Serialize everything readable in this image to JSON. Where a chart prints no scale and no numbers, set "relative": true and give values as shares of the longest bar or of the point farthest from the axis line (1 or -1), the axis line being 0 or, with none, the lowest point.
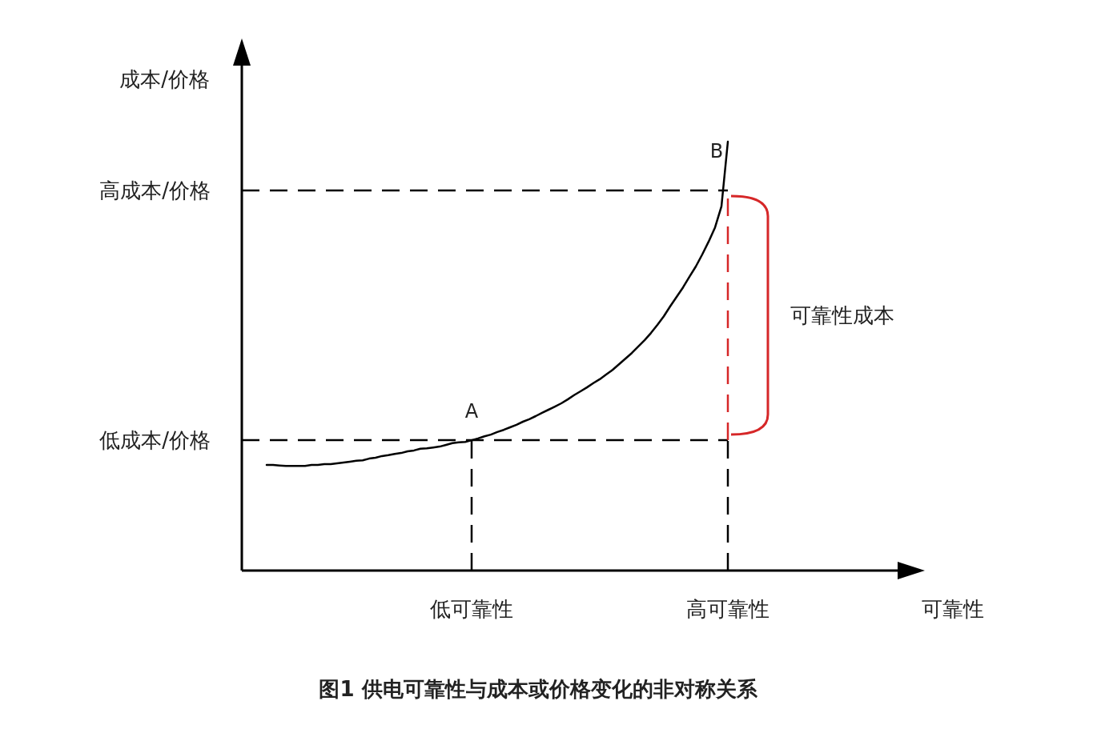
{
  "chart_data": {
    "type": "line",
    "relative": true,
    "title": "图1   供电可靠性与成本或价格变化的非对称关系",
    "ylabel": "成本/价格",
    "categories": [
      null,
      null,
      null,
      null,
      null,
      null,
      null,
      null,
      null,
      null,
      null,
      null,
      null,
      null,
      null,
      null,
      null,
      null,
      null,
      null,
      null,
      null,
      null,
      null,
      null,
      null,
      null,
      null,
      null,
      null,
      null,
      null,
      "低可靠性",
      null,
      null,
      null,
      null,
      null,
      null,
      null,
      null,
      null,
      null,
      null,
      null,
      null,
      null,
      null,
      null,
      null,
      null,
      null,
      null,
      null,
      null,
      null,
      null,
      null,
      null,
      null,
      null,
      null,
      null,
      null,
      null,
      null,
      null,
      null,
      null,
      null,
      null,
      null,
      "高可靠性"
    ],
    "series": [
      {
        "color": "#000000",
        "values": [
          0.246,
          0.246,
          0.245,
          0.244,
          0.244,
          0.244,
          0.244,
          0.246,
          0.246,
          0.248,
          0.248,
          0.25,
          0.252,
          0.254,
          0.256,
          0.257,
          0.261,
          0.263,
          0.267,
          0.269,
          0.272,
          0.274,
          0.278,
          0.28,
          0.284,
          0.285,
          0.287,
          0.289,
          0.293,
          0.297,
          0.299,
          0.3,
          0.304,
          0.308,
          0.313,
          0.317,
          0.323,
          0.328,
          0.334,
          0.34,
          0.347,
          0.353,
          0.36,
          0.368,
          0.375,
          0.382,
          0.39,
          0.399,
          0.409,
          0.418,
          0.427,
          0.437,
          0.446,
          0.457,
          0.468,
          0.481,
          0.494,
          0.507,
          0.522,
          0.537,
          0.554,
          0.573,
          0.593,
          0.616,
          0.638,
          0.66,
          0.685,
          0.709,
          0.737,
          0.767,
          0.8,
          0.849,
          1
        ]
      }
    ],
    "line_style": "solid",
    "marker": "none",
    "ref_lines": [
      {
        "axis": "y",
        "value": 0.304,
        "label": "低成本/价格",
        "line_style": "dashed",
        "color": "#000000"
      },
      {
        "axis": "y",
        "value": 0.886,
        "label": "高成本/价格",
        "line_style": "dashed",
        "color": "#000000"
      },
      {
        "axis": "x",
        "value": "低可靠性",
        "line_style": "dashed",
        "color": "#000000"
      },
      {
        "axis": "x",
        "value": "高可靠性",
        "line_style": "dashed",
        "color": "#000000"
      }
    ],
    "annotations": [
      "可靠性成本",
      "可靠性",
      {
        "text": "A",
        "x": "低可靠性",
        "y": 0.304
      },
      {
        "text": "B",
        "x": "高可靠性",
        "y": 1
      }
    ]
  }
}
